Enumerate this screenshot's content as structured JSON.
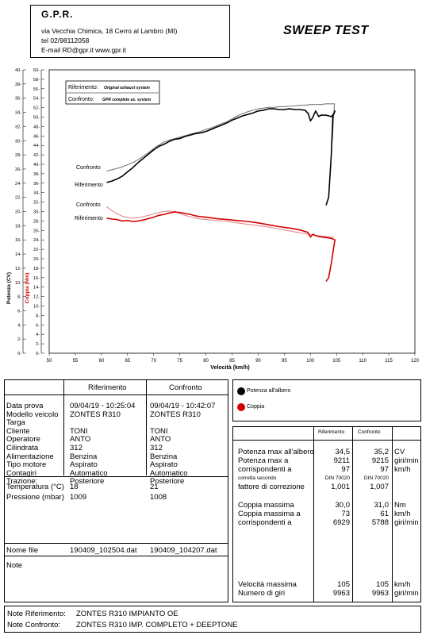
{
  "header": {
    "company": "G.P.R.",
    "address": "via Vecchia Chimica, 18 Cerro al Lambro (MI)",
    "phone": "tel 02/98112058",
    "email": "E-mail RD@gpr.it   www.gpr.it",
    "report_title": "SWEEP TEST"
  },
  "chart_data": {
    "type": "line",
    "xlabel": "Velocità (km/h)",
    "ylabel_power": "Potenza (CV)",
    "ylabel_torque": "Coppia (Nm)",
    "xlim": [
      50,
      120
    ],
    "x_ticks": [
      50,
      55,
      60,
      65,
      70,
      75,
      80,
      85,
      90,
      95,
      100,
      105,
      110,
      115,
      120
    ],
    "power_axis": {
      "ylim": [
        0,
        40
      ],
      "ticks": [
        0,
        2,
        4,
        6,
        8,
        10,
        12,
        14,
        16,
        18,
        20,
        22,
        24,
        26,
        28,
        30,
        32,
        34,
        36,
        38,
        40
      ]
    },
    "torque_axis": {
      "ylim": [
        0,
        60
      ],
      "ticks": [
        0,
        2,
        4,
        6,
        8,
        10,
        12,
        14,
        16,
        18,
        20,
        22,
        24,
        26,
        28,
        30,
        32,
        34,
        36,
        38,
        40,
        42,
        44,
        46,
        48,
        50,
        52,
        54,
        56,
        58,
        60
      ]
    },
    "grid": false,
    "legend_box": {
      "riferimento_label": "Riferimento:",
      "riferimento_text": "Original exhaust system",
      "confronto_label": "Confronto:",
      "confronto_text": "GPR complete ex. system"
    },
    "curve_labels": {
      "power_confronto": "Confronto",
      "power_riferimento": "Riferimento",
      "torque_confronto": "Confronto",
      "torque_riferimento": "Riferimento"
    },
    "series": [
      {
        "name": "Riferimento",
        "quantity": "power",
        "color": "#000000",
        "x": [
          61,
          62,
          63,
          64,
          65,
          66,
          67,
          68,
          69,
          70,
          71,
          72,
          73,
          74,
          75,
          76,
          77,
          78,
          79,
          80,
          81,
          82,
          83,
          84,
          85,
          86,
          87,
          88,
          89,
          90,
          91,
          92,
          93,
          94,
          95,
          96,
          97,
          98,
          99,
          99.6,
          100,
          100.4,
          101,
          101.6,
          102,
          103,
          104,
          104.5,
          104.7,
          104.3,
          104,
          103.5,
          103
        ],
        "y": [
          24.1,
          24.3,
          24.6,
          25.0,
          25.6,
          26.2,
          26.9,
          27.5,
          28.1,
          28.7,
          29.2,
          29.5,
          29.9,
          30.2,
          30.3,
          30.6,
          30.8,
          31.0,
          31.1,
          31.3,
          31.6,
          31.9,
          32.2,
          32.5,
          32.9,
          33.2,
          33.5,
          33.7,
          33.9,
          34.2,
          34.3,
          34.5,
          34.5,
          34.4,
          34.4,
          34.5,
          34.4,
          34.4,
          34.3,
          33.8,
          32.8,
          33.2,
          34.2,
          33.4,
          33.6,
          33.6,
          33.4,
          33.8,
          34.2,
          33.5,
          28,
          22,
          20.9
        ]
      },
      {
        "name": "Confronto",
        "quantity": "power",
        "color": "#7a7a7a",
        "x": [
          61,
          62,
          63,
          64,
          65,
          66,
          67,
          68,
          69,
          70,
          71,
          72,
          73,
          74,
          75,
          76,
          77,
          78,
          79,
          80,
          81,
          82,
          83,
          84,
          85,
          86,
          87,
          88,
          89,
          90,
          91,
          92,
          93,
          94,
          95,
          96,
          97,
          98,
          99,
          100,
          101,
          102,
          103,
          104,
          104.6,
          104.4,
          104.2
        ],
        "y": [
          25.7,
          25.9,
          26.1,
          26.3,
          26.6,
          26.9,
          27.3,
          27.8,
          28.3,
          28.9,
          29.4,
          29.8,
          30.1,
          30.3,
          30.5,
          30.7,
          30.9,
          31.1,
          31.3,
          31.6,
          31.8,
          32.1,
          32.4,
          32.7,
          33.1,
          33.5,
          33.8,
          34.1,
          34.3,
          34.5,
          34.6,
          34.7,
          34.7,
          34.8,
          34.8,
          34.9,
          34.9,
          35.0,
          35.0,
          35.1,
          35.1,
          35.1,
          35.2,
          35.2,
          35.2,
          33,
          30
        ]
      },
      {
        "name": "Riferimento",
        "quantity": "torque",
        "color": "#d40000",
        "x": [
          61,
          62,
          63,
          64,
          65,
          66,
          67,
          68,
          69,
          70,
          71,
          72,
          73,
          74,
          75,
          76,
          77,
          78,
          79,
          80,
          82,
          84,
          86,
          88,
          90,
          92,
          94,
          96,
          98,
          99.5,
          100,
          100.5,
          101,
          102,
          103,
          104,
          104.5,
          104.7,
          104.4,
          104,
          103.5,
          103
        ],
        "y": [
          28.6,
          28.4,
          28.3,
          28.0,
          28.1,
          27.9,
          28.0,
          28.2,
          28.5,
          28.8,
          29.2,
          29.4,
          29.7,
          29.9,
          29.8,
          29.6,
          29.4,
          29.1,
          28.9,
          28.8,
          28.5,
          28.3,
          28.1,
          27.9,
          27.6,
          27.2,
          26.8,
          26.5,
          26.1,
          25.6,
          24.6,
          25.2,
          24.9,
          24.6,
          24.5,
          24.3,
          24.1,
          24.0,
          22,
          19,
          16,
          15.2
        ]
      },
      {
        "name": "Confronto",
        "quantity": "torque",
        "color": "#e28a8a",
        "x": [
          61,
          62,
          63,
          64,
          65,
          66,
          67,
          68,
          69,
          70,
          71,
          72,
          73,
          74,
          75,
          76,
          77,
          78,
          79,
          80,
          82,
          84,
          86,
          88,
          90,
          92,
          94,
          96,
          98,
          100,
          102,
          104,
          104.5
        ],
        "y": [
          31.0,
          30.2,
          29.5,
          29.0,
          28.7,
          28.6,
          28.7,
          28.9,
          29.2,
          29.5,
          29.8,
          30.0,
          30.1,
          30.0,
          29.6,
          29.2,
          28.9,
          28.6,
          28.4,
          28.3,
          28.1,
          27.9,
          27.6,
          27.3,
          27.0,
          26.7,
          26.3,
          25.9,
          25.5,
          25.1,
          24.8,
          24.6,
          24.5
        ]
      }
    ]
  },
  "legend": {
    "power": "Potenza all'albero",
    "torque": "Coppia"
  },
  "info_table": {
    "col_ref": "Riferimento",
    "col_conf": "Confronto",
    "rows": [
      {
        "label": "Data prova",
        "ref": "09/04/19 - 10:25:04",
        "conf": "09/04/19 - 10:42:07"
      },
      {
        "label": "Modello veicolo",
        "ref": "ZONTES R310",
        "conf": "ZONTES R310"
      },
      {
        "label": "Targa",
        "ref": "",
        "conf": ""
      },
      {
        "label": "Cliente",
        "ref": "TONI",
        "conf": "TONI"
      },
      {
        "label": "Operatore",
        "ref": "ANTO",
        "conf": "ANTO"
      },
      {
        "label": "Cilindrata",
        "ref": "312",
        "conf": "312"
      },
      {
        "label": "Alimentazione",
        "ref": "Benzina",
        "conf": "Benzina"
      },
      {
        "label": "Tipo motore",
        "ref": "Aspirato",
        "conf": "Aspirato"
      },
      {
        "label": "Contagiri",
        "ref": "Automatico",
        "conf": "Automatico"
      },
      {
        "label": "Trazione:",
        "ref": "Posteriore",
        "conf": "Posteriore"
      }
    ],
    "env_rows": [
      {
        "label": "Temperatura (°C)",
        "ref": "18",
        "conf": "21"
      },
      {
        "label": "Pressione (mbar)",
        "ref": "1009",
        "conf": "1008"
      }
    ],
    "file_label": "Nome file",
    "file_ref": "190409_102504.dat",
    "file_conf": "190409_104207.dat",
    "note_label": "Note"
  },
  "results": {
    "col_ref": "Riferimento",
    "col_conf": "Confronto",
    "power_max_label": "Potenza max all'albero",
    "power_max_ref": "34,5",
    "power_max_conf": "35,2",
    "power_unit": "CV",
    "power_rpm_label": "Potenza max a",
    "power_rpm_ref": "9211",
    "power_rpm_conf": "9215",
    "rpm_unit": "giri/min",
    "corr_label": "corrispondenti a",
    "power_kmh_ref": "97",
    "power_kmh_conf": "97",
    "kmh_unit": "km/h",
    "corr_second_label": "corretta secondo",
    "din_ref": "DIN 70020",
    "din_conf": "DIN 70020",
    "factor_label": "fattore di correzione",
    "factor_ref": "1,001",
    "factor_conf": "1,007",
    "torque_max_label": "Coppia massima",
    "torque_max_ref": "30,0",
    "torque_max_conf": "31,0",
    "torque_unit": "Nm",
    "torque_kmh_label": "Coppia massima a",
    "torque_kmh_ref": "73",
    "torque_kmh_conf": "61",
    "torque_rpm_ref": "6929",
    "torque_rpm_conf": "5788",
    "vmax_label": "Velocità massima",
    "vmax_ref": "105",
    "vmax_conf": "105",
    "rpm_count_label": "Numero di giri",
    "rpm_count_ref": "9963",
    "rpm_count_conf": "9963"
  },
  "notes": {
    "ref_label": "Note Riferimento:",
    "ref_text": "ZONTES R310 IMPIANTO OE",
    "conf_label": "Note Confronto:",
    "conf_text": "ZONTES R310 IMP. COMPLETO + DEEPTONE"
  }
}
